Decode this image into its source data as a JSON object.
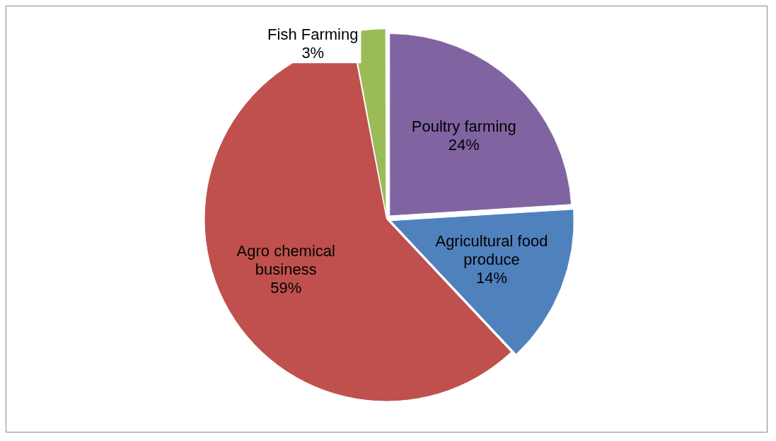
{
  "chart_data": {
    "type": "pie",
    "categories": [
      "Poultry farming",
      "Agricultural food produce",
      "Agro chemical business",
      "Fish Farming"
    ],
    "values": [
      24,
      14,
      59,
      3
    ],
    "value_labels": [
      "24%",
      "14%",
      "59%",
      "3%"
    ],
    "colors": [
      "#8064a2",
      "#4f81bd",
      "#c0504d",
      "#9bbb59"
    ],
    "legend": false
  }
}
